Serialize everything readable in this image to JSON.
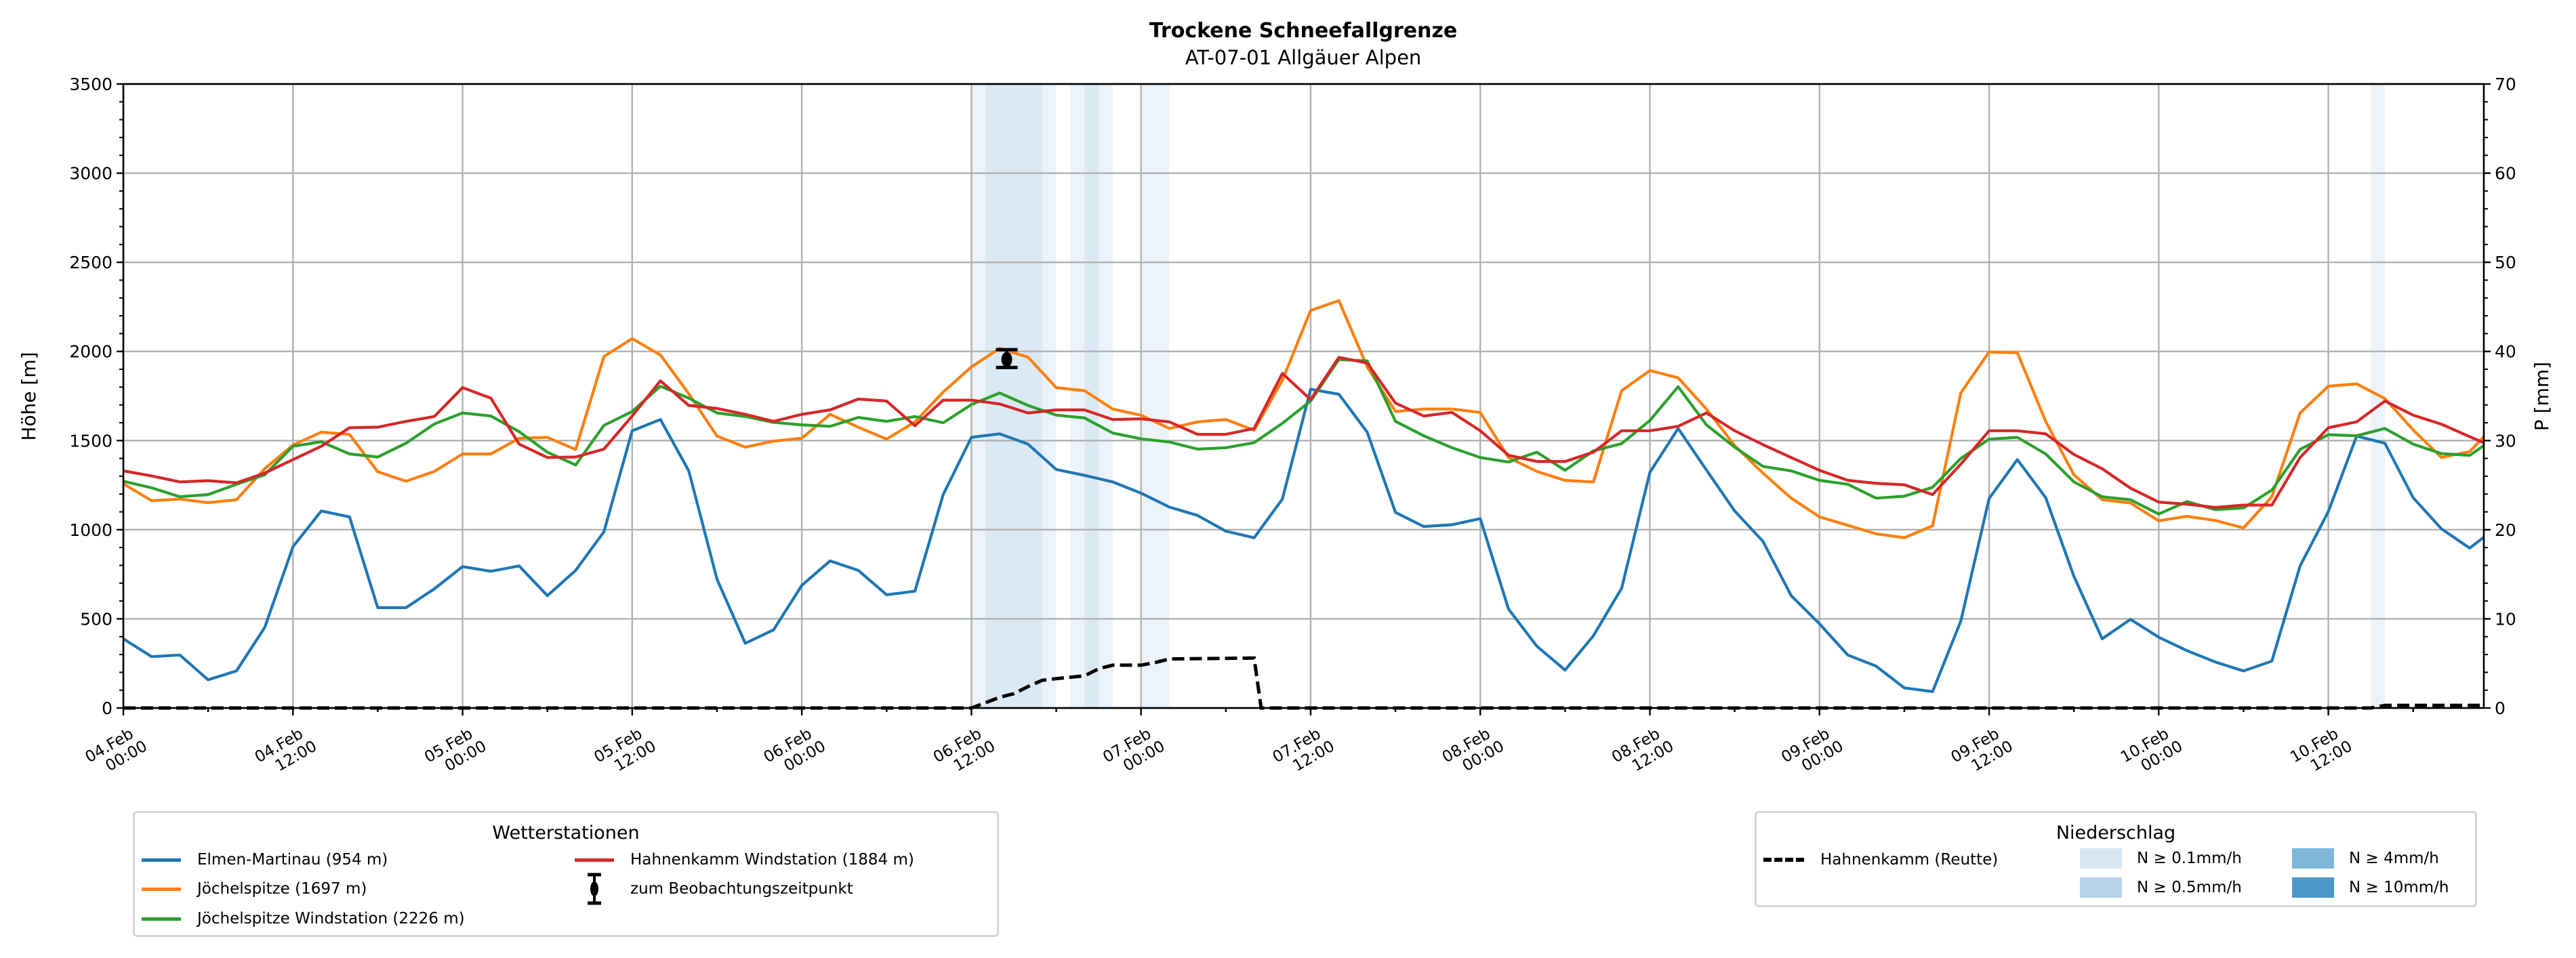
{
  "chart_data": {
    "type": "line",
    "title": "Trockene Schneefallgrenze",
    "subtitle": "AT-07-01 Allgäuer Alpen",
    "ylabel": "Höhe [m]",
    "ylabel_right": "P [mm]",
    "ylim": [
      0,
      3500
    ],
    "ylim_right": [
      0,
      70
    ],
    "yticks": [
      "0",
      "500",
      "1000",
      "1500",
      "2000",
      "2500",
      "3000",
      "3500"
    ],
    "yticks_right": [
      "0",
      "10",
      "20",
      "30",
      "40",
      "50",
      "60",
      "70"
    ],
    "x_unit": "hours since 04.Feb 00:00",
    "xlim": [
      0,
      167
    ],
    "x_ticks": [
      [
        "04.Feb",
        "00:00"
      ],
      [
        "04.Feb",
        "12:00"
      ],
      [
        "05.Feb",
        "00:00"
      ],
      [
        "05.Feb",
        "12:00"
      ],
      [
        "06.Feb",
        "00:00"
      ],
      [
        "06.Feb",
        "12:00"
      ],
      [
        "07.Feb",
        "00:00"
      ],
      [
        "07.Feb",
        "12:00"
      ],
      [
        "08.Feb",
        "00:00"
      ],
      [
        "08.Feb",
        "12:00"
      ],
      [
        "09.Feb",
        "00:00"
      ],
      [
        "09.Feb",
        "12:00"
      ],
      [
        "10.Feb",
        "00:00"
      ],
      [
        "10.Feb",
        "12:00"
      ]
    ],
    "grid": true,
    "x": [
      0,
      2,
      4,
      6,
      8,
      10,
      12,
      14,
      16,
      18,
      20,
      22,
      24,
      26,
      28,
      30,
      32,
      34,
      36,
      38,
      40,
      42,
      44,
      46,
      48,
      50,
      52,
      54,
      56,
      58,
      60,
      62,
      64,
      66,
      68,
      70,
      72,
      74,
      76,
      78,
      80,
      82,
      84,
      86,
      88,
      90,
      92,
      94,
      96,
      98,
      100,
      102,
      104,
      106,
      108,
      110,
      112,
      114,
      116,
      118,
      120,
      122,
      124,
      126,
      128,
      130,
      132,
      134,
      136,
      138,
      140,
      142,
      144,
      146,
      148,
      150,
      152,
      154,
      156,
      158,
      160,
      162,
      164,
      166,
      167
    ],
    "series": [
      {
        "name": "Elmen-Martinau (954 m)",
        "color": "#1f77b4",
        "values": [
          388,
          288,
          297,
          158,
          208,
          452,
          905,
          1105,
          1072,
          563,
          563,
          668,
          793,
          767,
          797,
          630,
          772,
          988,
          1555,
          1618,
          1330,
          722,
          363,
          438,
          688,
          825,
          772,
          635,
          655,
          1197,
          1518,
          1538,
          1480,
          1338,
          1305,
          1268,
          1205,
          1127,
          1080,
          992,
          955,
          1172,
          1788,
          1760,
          1547,
          1097,
          1018,
          1028,
          1062,
          555,
          347,
          213,
          405,
          672,
          1322,
          1568,
          1335,
          1105,
          935,
          630,
          472,
          297,
          235,
          113,
          92,
          488,
          1175,
          1393,
          1180,
          738,
          388,
          497,
          397,
          322,
          258,
          208,
          263,
          797,
          1102,
          1525,
          1485,
          1180,
          1005,
          897,
          958
        ]
      },
      {
        "name": "Jöchelspitze (1697 m)",
        "color": "#ff7f0e",
        "values": [
          1258,
          1163,
          1172,
          1152,
          1168,
          1342,
          1475,
          1547,
          1535,
          1325,
          1272,
          1327,
          1425,
          1425,
          1513,
          1518,
          1450,
          1972,
          2072,
          1980,
          1763,
          1525,
          1463,
          1497,
          1513,
          1647,
          1575,
          1508,
          1605,
          1772,
          1913,
          2017,
          1968,
          1797,
          1780,
          1677,
          1642,
          1568,
          1605,
          1618,
          1558,
          1838,
          2230,
          2285,
          1913,
          1663,
          1677,
          1677,
          1658,
          1405,
          1327,
          1277,
          1268,
          1780,
          1893,
          1852,
          1677,
          1472,
          1318,
          1177,
          1072,
          1025,
          977,
          955,
          1022,
          1768,
          1997,
          1993,
          1608,
          1308,
          1168,
          1150,
          1050,
          1075,
          1052,
          1010,
          1185,
          1655,
          1805,
          1818,
          1735,
          1560,
          1405,
          1438,
          1522
        ]
      },
      {
        "name": "Jöchelspitze Windstation (2226 m)",
        "color": "#2ca02c",
        "values": [
          1272,
          1235,
          1185,
          1197,
          1255,
          1308,
          1468,
          1493,
          1425,
          1408,
          1485,
          1593,
          1655,
          1638,
          1550,
          1435,
          1363,
          1585,
          1663,
          1805,
          1738,
          1655,
          1635,
          1602,
          1588,
          1580,
          1630,
          1608,
          1635,
          1600,
          1702,
          1767,
          1697,
          1643,
          1627,
          1542,
          1510,
          1492,
          1452,
          1460,
          1488,
          1597,
          1722,
          1955,
          1947,
          1608,
          1527,
          1460,
          1405,
          1380,
          1435,
          1333,
          1442,
          1483,
          1613,
          1802,
          1588,
          1463,
          1355,
          1330,
          1277,
          1255,
          1177,
          1188,
          1238,
          1400,
          1508,
          1518,
          1425,
          1268,
          1185,
          1168,
          1088,
          1158,
          1113,
          1122,
          1222,
          1450,
          1533,
          1527,
          1568,
          1480,
          1427,
          1417,
          1472
        ]
      },
      {
        "name": "Hahnenkamm Windstation (1884 m)",
        "color": "#d62728",
        "values": [
          1330,
          1302,
          1268,
          1275,
          1263,
          1318,
          1393,
          1468,
          1572,
          1575,
          1608,
          1635,
          1797,
          1738,
          1480,
          1405,
          1408,
          1452,
          1638,
          1835,
          1697,
          1680,
          1647,
          1608,
          1647,
          1672,
          1733,
          1722,
          1583,
          1727,
          1727,
          1705,
          1655,
          1672,
          1672,
          1618,
          1622,
          1605,
          1535,
          1535,
          1568,
          1877,
          1730,
          1967,
          1935,
          1710,
          1638,
          1658,
          1555,
          1418,
          1383,
          1383,
          1435,
          1555,
          1555,
          1580,
          1655,
          1555,
          1477,
          1405,
          1333,
          1277,
          1260,
          1252,
          1197,
          1368,
          1555,
          1555,
          1538,
          1422,
          1342,
          1233,
          1155,
          1143,
          1125,
          1138,
          1138,
          1405,
          1572,
          1605,
          1722,
          1643,
          1592,
          1522,
          1488
        ]
      }
    ],
    "observation": {
      "name": "zum Beobachtungszeitpunkt",
      "x": 62.5,
      "value": 1955,
      "err_low": 1910,
      "err_high": 2010
    },
    "precip_series": {
      "name": "Hahnenkamm (Reutte)",
      "axis": "right",
      "color": "#000000",
      "x": [
        0,
        60,
        61,
        62,
        63,
        64,
        65,
        66,
        68,
        69,
        70,
        72,
        73,
        74,
        80,
        80.5,
        158,
        159,
        160,
        167
      ],
      "values": [
        0,
        0,
        0.6,
        1.2,
        1.6,
        2.4,
        3.1,
        3.3,
        3.6,
        4.4,
        4.8,
        4.8,
        5.1,
        5.5,
        5.6,
        0,
        0,
        0,
        0.3,
        0.3
      ]
    },
    "precip_bands": [
      {
        "start": 60,
        "end": 61,
        "level": "0.1"
      },
      {
        "start": 61,
        "end": 65,
        "level": "0.5"
      },
      {
        "start": 65,
        "end": 66,
        "level": "0.1"
      },
      {
        "start": 67,
        "end": 68,
        "level": "0.1"
      },
      {
        "start": 68,
        "end": 69,
        "level": "0.5"
      },
      {
        "start": 69,
        "end": 70,
        "level": "0.1"
      },
      {
        "start": 72,
        "end": 74,
        "level": "0.1"
      },
      {
        "start": 159,
        "end": 160,
        "level": "0.1"
      }
    ],
    "precip_levels": {
      "0.1": "#d9e7f5",
      "0.5": "#b7d3ea",
      "4": "#7fb7da",
      "10": "#4b98ca"
    },
    "legend_stations": {
      "title": "Wetterstationen",
      "placement": "bottom-left",
      "items": [
        "Elmen-Martinau (954 m)",
        "Jöchelspitze (1697 m)",
        "Jöchelspitze Windstation (2226 m)",
        "Hahnenkamm Windstation (1884 m)",
        "zum Beobachtungszeitpunkt"
      ]
    },
    "legend_precip": {
      "title": "Niederschlag",
      "placement": "bottom-right",
      "items": [
        "Hahnenkamm (Reutte)",
        "N ≥ 0.1mm/h",
        "N ≥ 0.5mm/h",
        "N ≥ 4mm/h",
        "N ≥ 10mm/h"
      ]
    }
  }
}
